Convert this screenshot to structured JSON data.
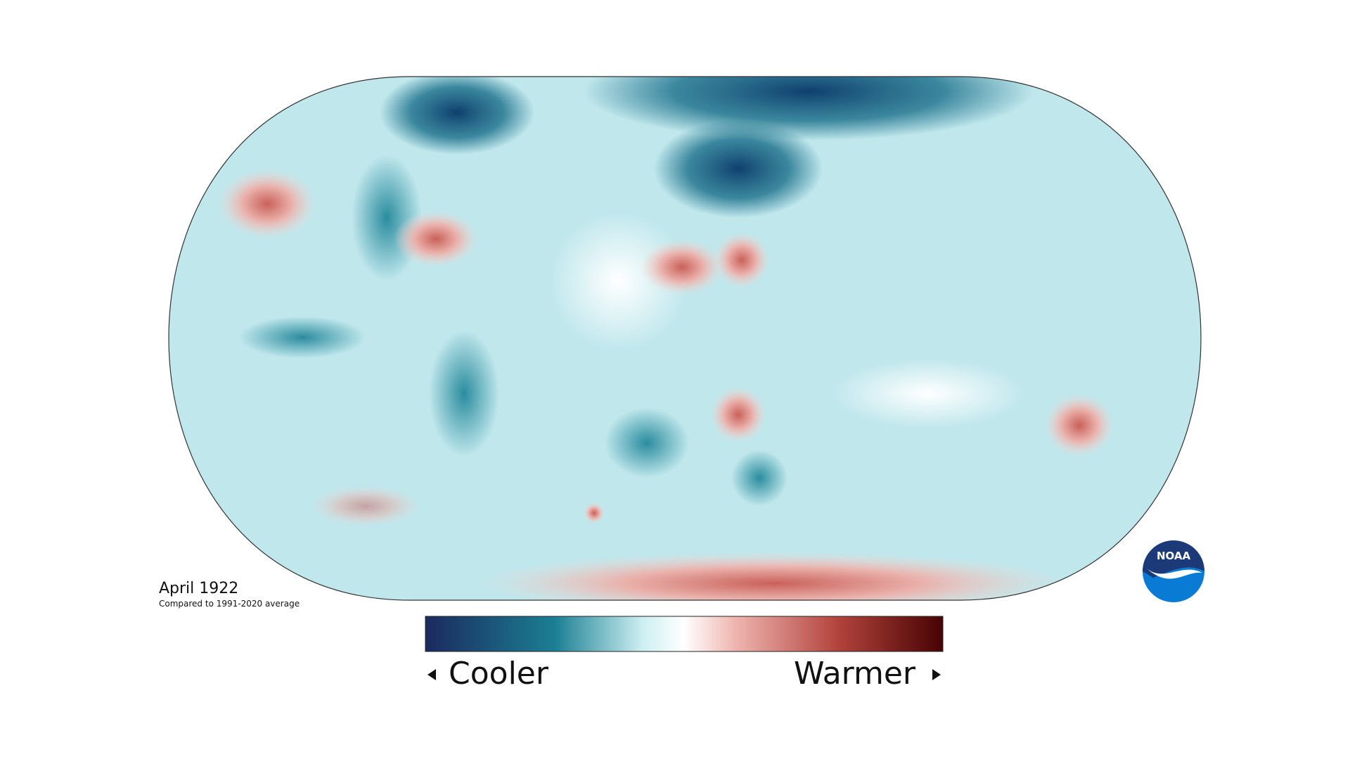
{
  "map": {
    "title": "April 1922",
    "subtitle": "Compared to 1991-2020 average"
  },
  "legend": {
    "low": "Cooler",
    "high": "Warmer"
  },
  "logo": "NOAA"
}
